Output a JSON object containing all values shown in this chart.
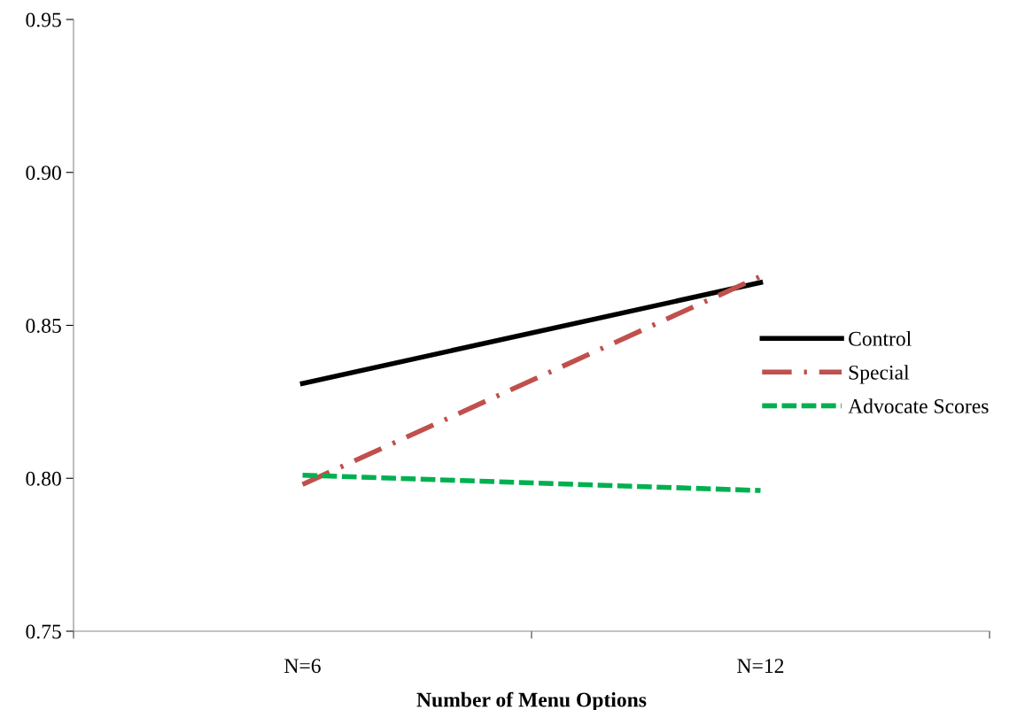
{
  "chart_data": {
    "type": "line",
    "xlabel": "Number of Menu Options",
    "categories": [
      "N=6",
      "N=12"
    ],
    "ylim": [
      0.75,
      0.95
    ],
    "yticks": [
      {
        "value": 0.75,
        "label": "0.75"
      },
      {
        "value": 0.8,
        "label": "0.80"
      },
      {
        "value": 0.85,
        "label": "0.85"
      },
      {
        "value": 0.9,
        "label": "0.90"
      },
      {
        "value": 0.95,
        "label": "0.95"
      }
    ],
    "grid": false,
    "legend": "right",
    "marker": "none",
    "series": [
      {
        "name": "Control",
        "color": "#000000",
        "line_style": "solid",
        "values": [
          0.831,
          0.864
        ]
      },
      {
        "name": "Special",
        "color": "#c0504d",
        "line_style": "dashdot",
        "values": [
          0.798,
          0.866
        ]
      },
      {
        "name": "Advocate Scores",
        "color": "#00b050",
        "line_style": "dashed",
        "values": [
          0.801,
          0.796
        ]
      }
    ]
  }
}
